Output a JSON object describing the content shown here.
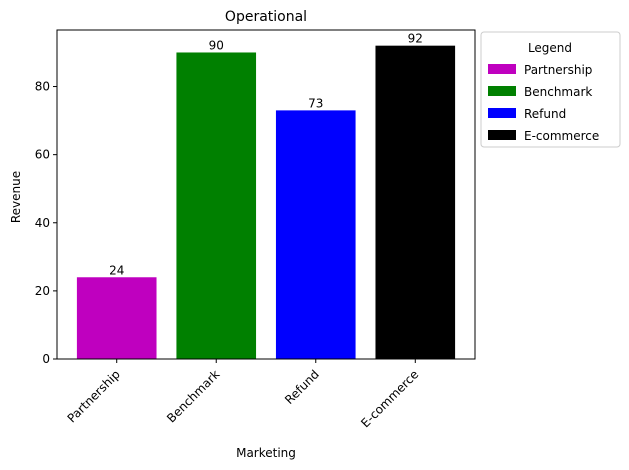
{
  "chart_data": {
    "type": "bar",
    "title": "Operational",
    "xlabel": "Marketing",
    "ylabel": "Revenue",
    "categories": [
      "Partnership",
      "Benchmark",
      "Refund",
      "E-commerce"
    ],
    "values": [
      24,
      90,
      73,
      92
    ],
    "colors": [
      "#bf00bf",
      "#008000",
      "#0000ff",
      "#000000"
    ],
    "ylim": [
      0,
      96.6
    ],
    "yticks": [
      0,
      20,
      40,
      60,
      80
    ],
    "legend": {
      "title": "Legend",
      "placement": "outside-top-right",
      "entries": [
        "Partnership",
        "Benchmark",
        "Refund",
        "E-commerce"
      ]
    },
    "grid": false
  }
}
